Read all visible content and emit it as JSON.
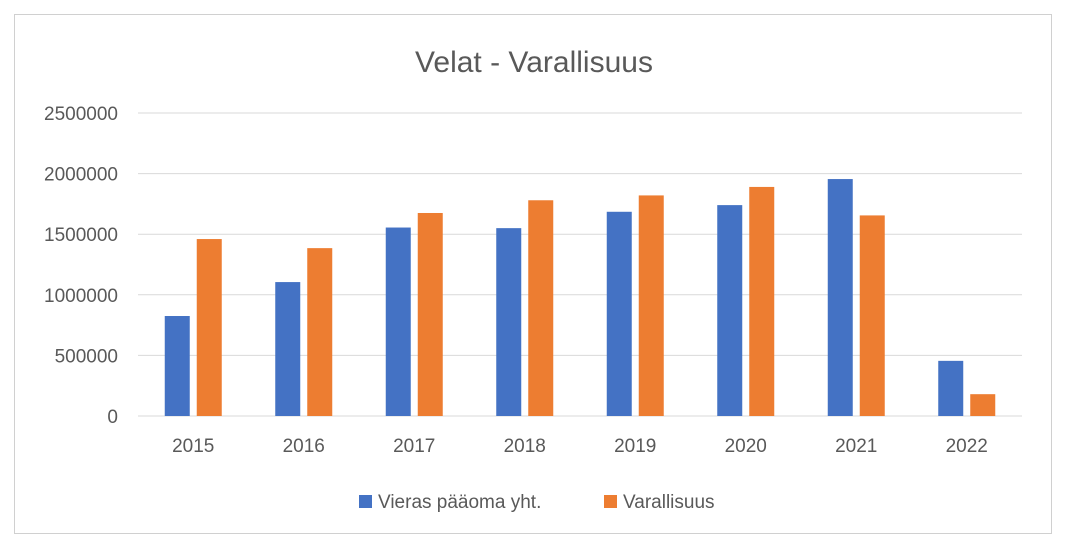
{
  "chart_data": {
    "type": "bar",
    "title": "Velat - Varallisuus",
    "xlabel": "",
    "ylabel": "",
    "categories": [
      "2015",
      "2016",
      "2017",
      "2018",
      "2019",
      "2020",
      "2021",
      "2022"
    ],
    "series": [
      {
        "name": "Vieras pääoma yht.",
        "color": "#4472C4",
        "values": [
          825000,
          1105000,
          1555000,
          1550000,
          1685000,
          1740000,
          1955000,
          455000
        ]
      },
      {
        "name": "Varallisuus",
        "color": "#ED7D31",
        "values": [
          1460000,
          1385000,
          1675000,
          1780000,
          1820000,
          1890000,
          1655000,
          180000
        ]
      }
    ],
    "ylim": [
      0,
      2500000
    ],
    "yticks": [
      "0",
      "500000",
      "1000000",
      "1500000",
      "2000000",
      "2500000"
    ],
    "grid": true,
    "legend_position": "bottom"
  }
}
